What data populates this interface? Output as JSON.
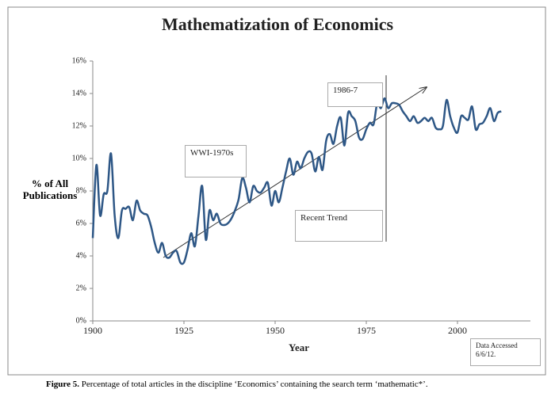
{
  "chart_data": {
    "type": "line",
    "title": "Mathematization of Economics",
    "xlabel": "Year",
    "ylabel": "% of All Publications",
    "annotations": [
      "WWI-1970s",
      "1986-7",
      "Recent Trend",
      "Data Accessed 6/6/12."
    ],
    "caption_label": "Figure 5.",
    "caption": "Percentage of total articles in the discipline ‘Economics’ containing the search term ‘mathematic*’.",
    "xlim": [
      1900,
      2020
    ],
    "xticks": [
      1900,
      1925,
      1950,
      1975,
      2000
    ],
    "ylim": [
      0,
      16
    ],
    "yticks": [
      {
        "value": 0,
        "label": "0%"
      },
      {
        "value": 2,
        "label": "2%"
      },
      {
        "value": 4,
        "label": "4%"
      },
      {
        "value": 6,
        "label": "6%"
      },
      {
        "value": 8,
        "label": "8%"
      },
      {
        "value": 10,
        "label": "10%"
      },
      {
        "value": 12,
        "label": "12%"
      },
      {
        "value": 14,
        "label": "14%"
      },
      {
        "value": 16,
        "label": "16%"
      }
    ],
    "color": "#2e5786",
    "x": [
      1900,
      1901,
      1902,
      1903,
      1904,
      1905,
      1906,
      1907,
      1908,
      1909,
      1910,
      1911,
      1912,
      1913,
      1914,
      1915,
      1916,
      1917,
      1918,
      1919,
      1920,
      1921,
      1922,
      1923,
      1924,
      1925,
      1926,
      1927,
      1928,
      1929,
      1930,
      1931,
      1932,
      1933,
      1934,
      1935,
      1936,
      1937,
      1938,
      1939,
      1940,
      1941,
      1942,
      1943,
      1944,
      1945,
      1946,
      1947,
      1948,
      1949,
      1950,
      1951,
      1952,
      1953,
      1954,
      1955,
      1956,
      1957,
      1958,
      1959,
      1960,
      1961,
      1962,
      1963,
      1964,
      1965,
      1966,
      1967,
      1968,
      1969,
      1970,
      1971,
      1972,
      1973,
      1974,
      1975,
      1976,
      1977,
      1978,
      1979,
      1980,
      1981,
      1982,
      1983,
      1984,
      1985,
      1986,
      1987,
      1988,
      1989,
      1990,
      1991,
      1992,
      1993,
      1994,
      1995,
      1996,
      1997,
      1998,
      1999,
      2000,
      2001,
      2002,
      2003,
      2004,
      2005,
      2006,
      2007,
      2008,
      2009,
      2010,
      2011,
      2012
    ],
    "values": [
      5.1,
      9.6,
      6.5,
      7.8,
      8.0,
      10.3,
      6.5,
      5.1,
      6.8,
      6.9,
      7.0,
      6.2,
      7.4,
      6.8,
      6.6,
      6.5,
      5.8,
      4.8,
      4.2,
      4.8,
      4.0,
      3.9,
      4.2,
      4.3,
      3.6,
      3.6,
      4.4,
      5.4,
      4.6,
      6.5,
      8.3,
      5.0,
      6.8,
      6.2,
      6.6,
      6.0,
      5.9,
      6.0,
      6.3,
      6.8,
      7.5,
      8.8,
      8.2,
      7.3,
      8.3,
      8.0,
      7.9,
      8.2,
      8.5,
      7.1,
      8.0,
      7.3,
      8.2,
      9.2,
      10.0,
      9.0,
      9.8,
      9.4,
      10.0,
      10.4,
      10.3,
      9.2,
      10.1,
      9.3,
      11.1,
      11.5,
      10.9,
      12.0,
      12.5,
      10.8,
      12.8,
      12.6,
      12.3,
      11.3,
      11.2,
      11.8,
      12.2,
      12.1,
      13.4,
      13.1,
      13.7,
      13.1,
      13.4,
      13.4,
      13.3,
      12.9,
      12.6,
      12.3,
      12.6,
      12.2,
      12.3,
      12.5,
      12.3,
      12.5,
      11.9,
      11.8,
      12.0,
      13.6,
      12.6,
      11.9,
      11.6,
      12.6,
      12.5,
      12.4,
      13.2,
      11.8,
      12.1,
      12.2,
      12.6,
      13.1,
      12.3,
      12.8,
      12.9
    ]
  }
}
